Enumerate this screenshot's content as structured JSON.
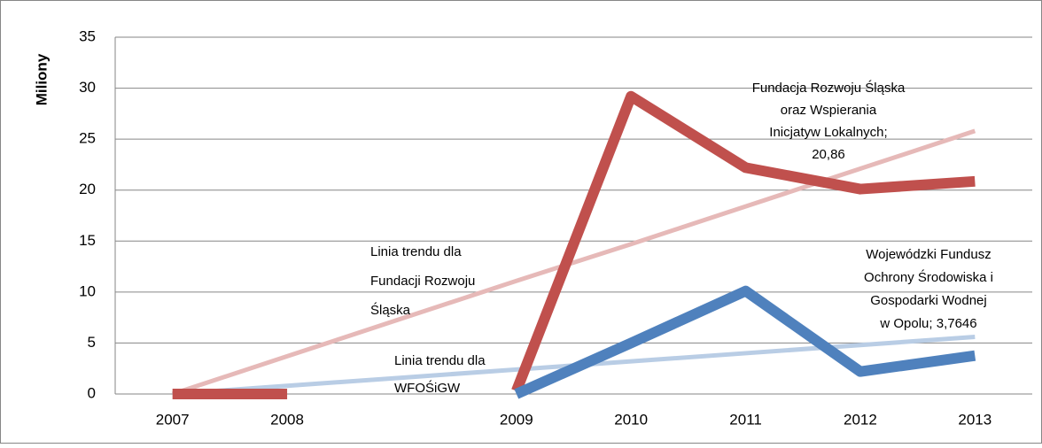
{
  "chart_data": {
    "type": "line",
    "y_label": "Miliony",
    "categories": [
      "2007",
      "2008",
      null,
      "2009",
      "2010",
      "2011",
      "2012",
      "2013"
    ],
    "series": [
      {
        "name": "Linia trendu dla Fundacji Rozwoju Śląska",
        "color": "#e6b9b8",
        "width": 5,
        "values": [
          0,
          3.7,
          7.4,
          11.1,
          14.7,
          18.4,
          22.1,
          25.8
        ]
      },
      {
        "name": "Linia trendu dla WFOŚiGW",
        "color": "#b9cde5",
        "width": 5,
        "values": [
          0,
          0.8,
          1.6,
          2.4,
          3.2,
          4.0,
          4.8,
          5.6
        ]
      },
      {
        "name": "Fundacja Rozwoju Śląska oraz Wspierania Inicjatyw Lokalnych",
        "color": "#c0504d",
        "width": 12,
        "values": [
          0,
          0,
          null,
          0.3,
          29.2,
          22.2,
          20.1,
          20.86
        ]
      },
      {
        "name": "Wojewódzki Fundusz Ochrony Środowiska i Gospodarki Wodnej w Opolu",
        "color": "#4f81bd",
        "width": 12,
        "values": [
          null,
          null,
          null,
          0,
          5,
          10.1,
          2.2,
          3.7646
        ]
      }
    ],
    "annotations": [
      {
        "lines": [
          "Linia trendu dla",
          "Fundacji Rozwoju",
          "Śląska"
        ]
      },
      {
        "lines": [
          "Linia trendu dla",
          "WFOŚiGW"
        ]
      },
      {
        "lines": [
          "Fundacja Rozwoju Śląska",
          "oraz Wspierania",
          "Inicjatyw Lokalnych;",
          "20,86"
        ]
      },
      {
        "lines": [
          "Wojewódzki Fundusz",
          "Ochrony Środowiska i",
          "Gospodarki Wodnej",
          "w Opolu; 3,7646"
        ]
      }
    ],
    "ylim": [
      0,
      35
    ],
    "yticks": [
      0,
      5,
      10,
      15,
      20,
      25,
      30,
      35
    ],
    "grid": true
  }
}
